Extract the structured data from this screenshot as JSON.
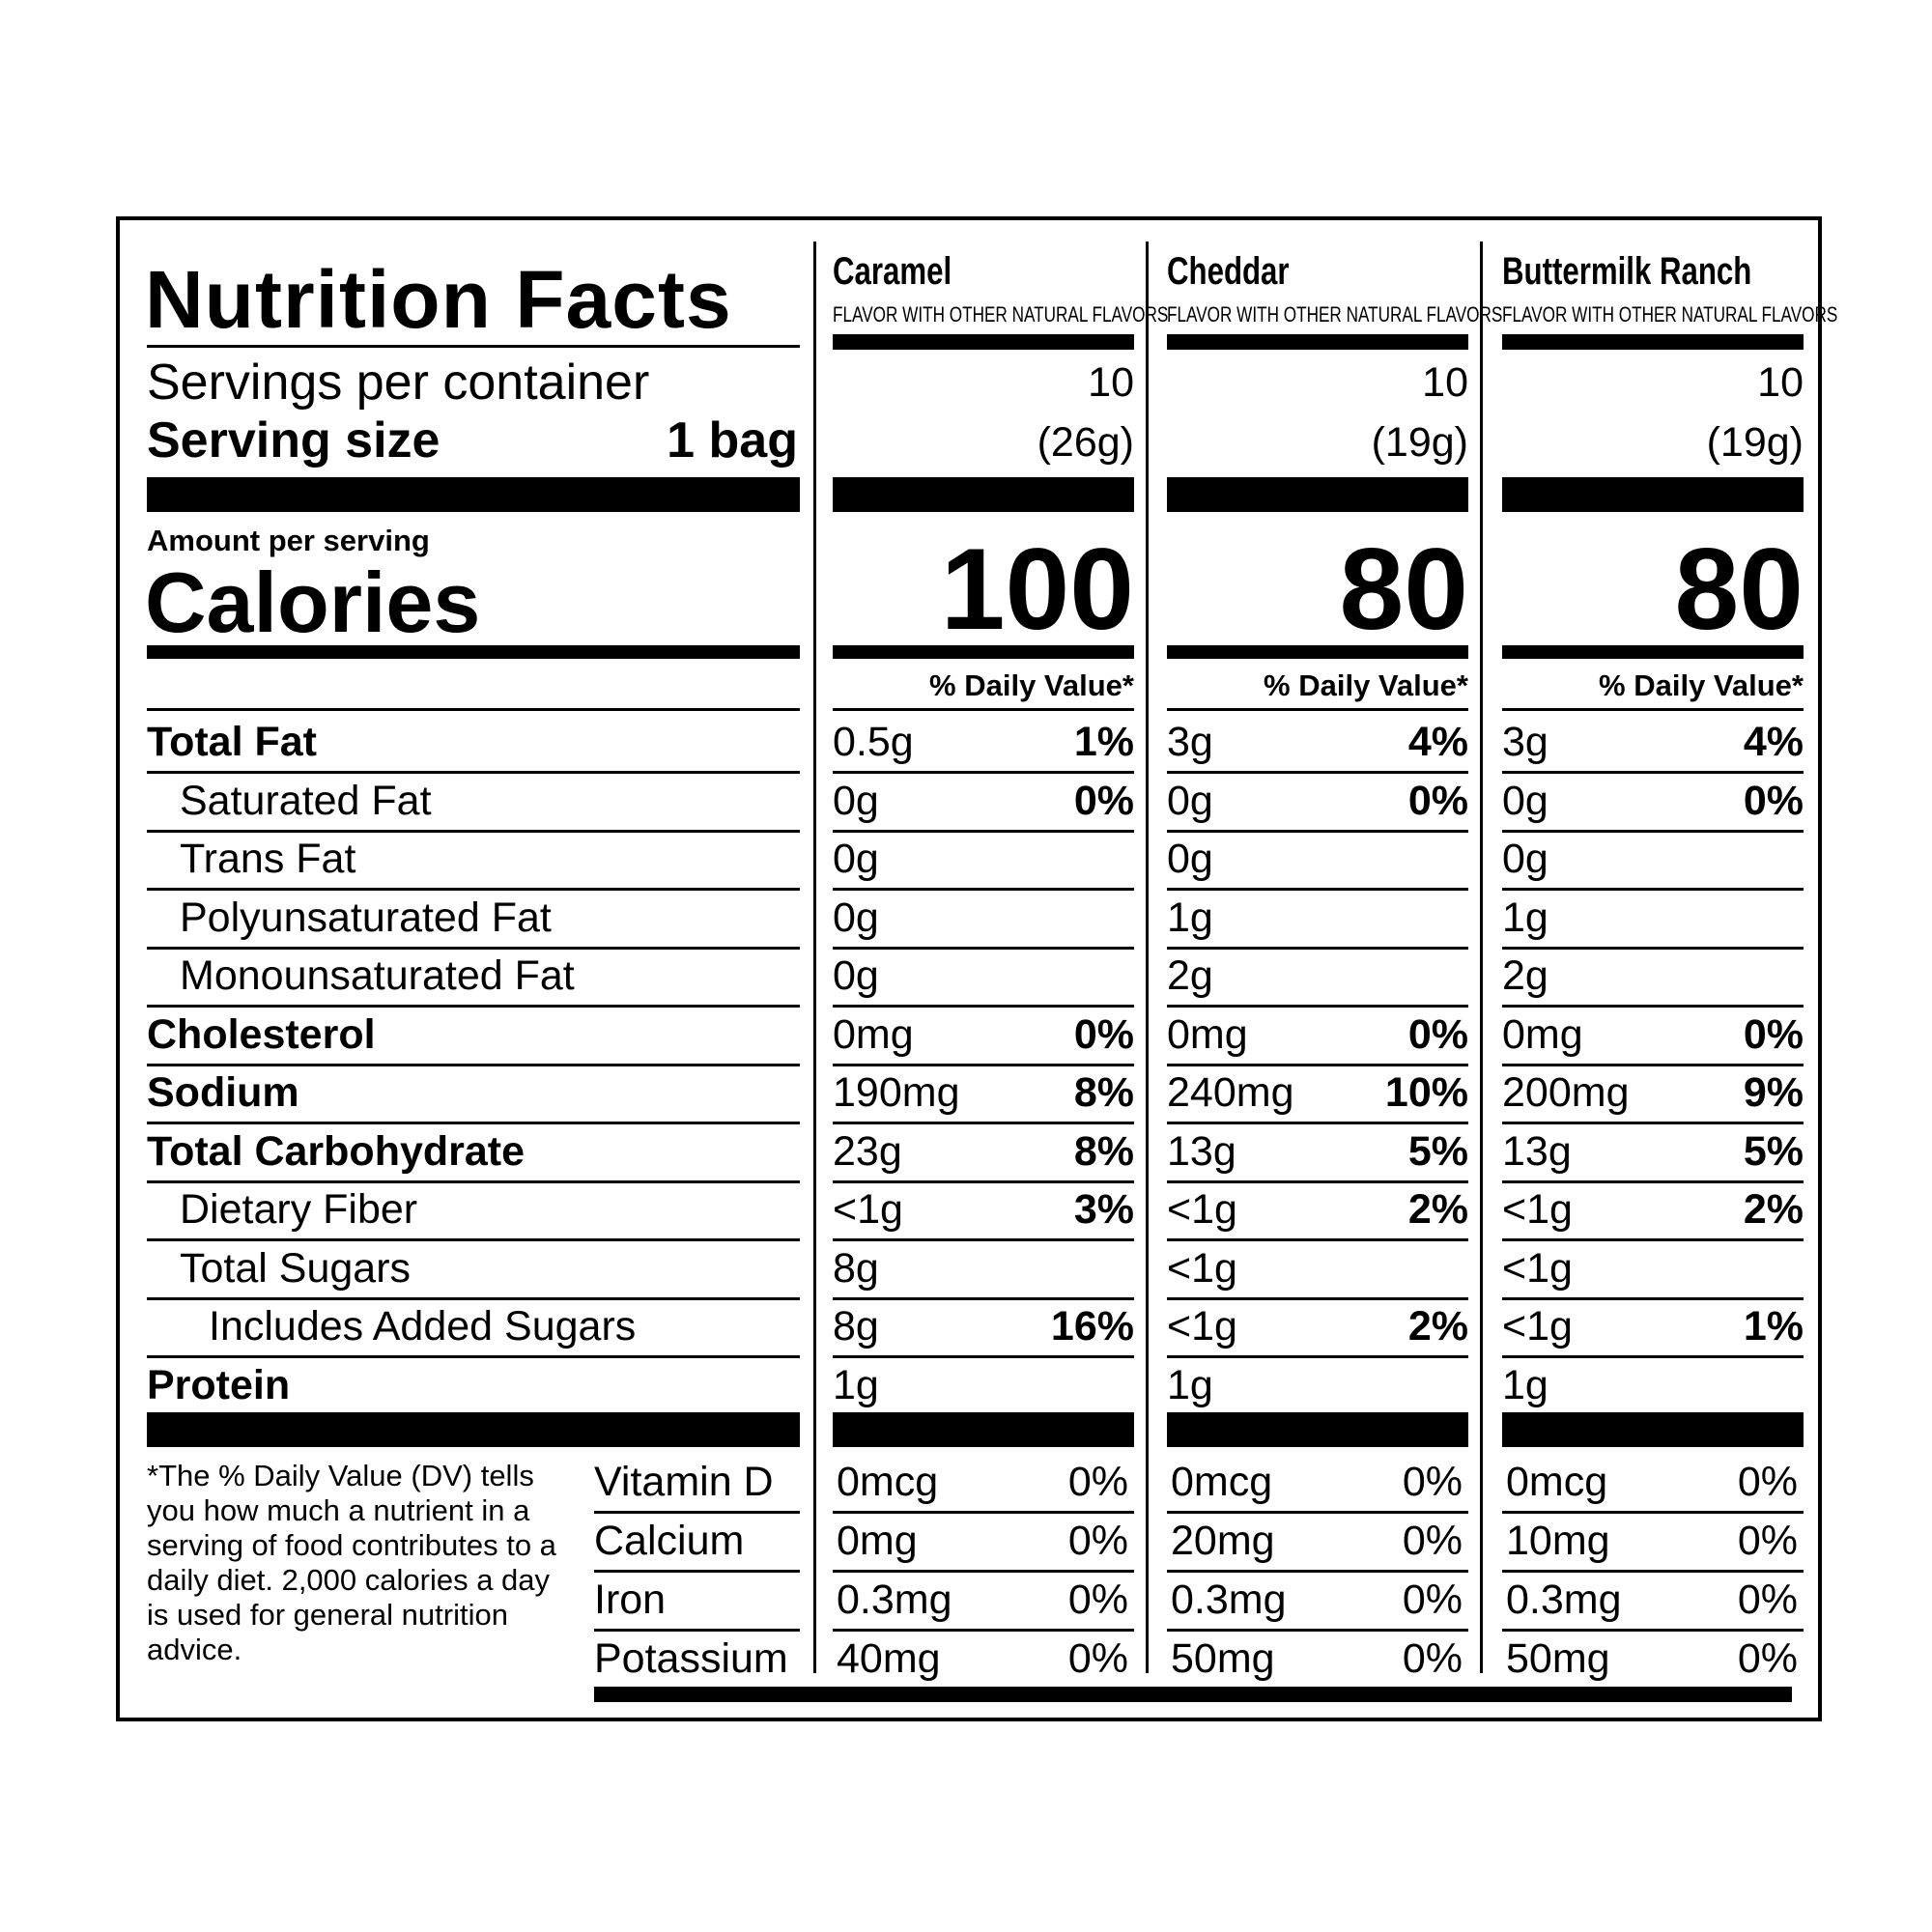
{
  "title": "Nutrition Facts",
  "servings_per_container_label": "Servings per container",
  "serving_size_label": "Serving size",
  "serving_size_value": "1 bag",
  "amount_per_serving": "Amount per serving",
  "calories_label": "Calories",
  "daily_value_header": "% Daily Value*",
  "nutrients": [
    {
      "label": "Total Fat",
      "style": "bold"
    },
    {
      "label": "Saturated Fat",
      "style": "ind1"
    },
    {
      "label": "Trans Fat",
      "style": "ind1"
    },
    {
      "label": "Polyunsaturated Fat",
      "style": "ind1"
    },
    {
      "label": "Monounsaturated Fat",
      "style": "ind1"
    },
    {
      "label": "Cholesterol",
      "style": "bold"
    },
    {
      "label": "Sodium",
      "style": "bold"
    },
    {
      "label": "Total Carbohydrate",
      "style": "bold"
    },
    {
      "label": "Dietary Fiber",
      "style": "ind1"
    },
    {
      "label": "Total Sugars",
      "style": "ind1"
    },
    {
      "label": "Includes Added Sugars",
      "style": "ind2"
    },
    {
      "label": "Protein",
      "style": "bold"
    }
  ],
  "vitamins": [
    "Vitamin D",
    "Calcium",
    "Iron",
    "Potassium"
  ],
  "footnote": "*The % Daily Value (DV) tells you how much a nutrient in a serving of food contributes to a daily diet. 2,000 calories a day is used for general nutrition advice.",
  "flavors": [
    {
      "name": "Caramel",
      "subtitle": "FLAVOR WITH OTHER NATURAL FLAVORS",
      "servings": "10",
      "serving_weight": "(26g)",
      "calories": "100",
      "rows": [
        {
          "amount": "0.5g",
          "dv": "1%"
        },
        {
          "amount": "0g",
          "dv": "0%"
        },
        {
          "amount": "0g",
          "dv": ""
        },
        {
          "amount": "0g",
          "dv": ""
        },
        {
          "amount": "0g",
          "dv": ""
        },
        {
          "amount": "0mg",
          "dv": "0%"
        },
        {
          "amount": "190mg",
          "dv": "8%"
        },
        {
          "amount": "23g",
          "dv": "8%"
        },
        {
          "amount": "<1g",
          "dv": "3%"
        },
        {
          "amount": "8g",
          "dv": ""
        },
        {
          "amount": "8g",
          "dv": "16%"
        },
        {
          "amount": "1g",
          "dv": ""
        }
      ],
      "vitamins": [
        {
          "amount": "0mcg",
          "dv": "0%"
        },
        {
          "amount": "0mg",
          "dv": "0%"
        },
        {
          "amount": "0.3mg",
          "dv": "0%"
        },
        {
          "amount": "40mg",
          "dv": "0%"
        }
      ]
    },
    {
      "name": "Cheddar",
      "subtitle": "FLAVOR WITH OTHER NATURAL FLAVORS",
      "servings": "10",
      "serving_weight": "(19g)",
      "calories": "80",
      "rows": [
        {
          "amount": "3g",
          "dv": "4%"
        },
        {
          "amount": "0g",
          "dv": "0%"
        },
        {
          "amount": "0g",
          "dv": ""
        },
        {
          "amount": "1g",
          "dv": ""
        },
        {
          "amount": "2g",
          "dv": ""
        },
        {
          "amount": "0mg",
          "dv": "0%"
        },
        {
          "amount": "240mg",
          "dv": "10%"
        },
        {
          "amount": "13g",
          "dv": "5%"
        },
        {
          "amount": "<1g",
          "dv": "2%"
        },
        {
          "amount": "<1g",
          "dv": ""
        },
        {
          "amount": "<1g",
          "dv": "2%"
        },
        {
          "amount": "1g",
          "dv": ""
        }
      ],
      "vitamins": [
        {
          "amount": "0mcg",
          "dv": "0%"
        },
        {
          "amount": "20mg",
          "dv": "0%"
        },
        {
          "amount": "0.3mg",
          "dv": "0%"
        },
        {
          "amount": "50mg",
          "dv": "0%"
        }
      ]
    },
    {
      "name": "Buttermilk Ranch",
      "subtitle": "FLAVOR WITH OTHER NATURAL FLAVORS",
      "servings": "10",
      "serving_weight": "(19g)",
      "calories": "80",
      "rows": [
        {
          "amount": "3g",
          "dv": "4%"
        },
        {
          "amount": "0g",
          "dv": "0%"
        },
        {
          "amount": "0g",
          "dv": ""
        },
        {
          "amount": "1g",
          "dv": ""
        },
        {
          "amount": "2g",
          "dv": ""
        },
        {
          "amount": "0mg",
          "dv": "0%"
        },
        {
          "amount": "200mg",
          "dv": "9%"
        },
        {
          "amount": "13g",
          "dv": "5%"
        },
        {
          "amount": "<1g",
          "dv": "2%"
        },
        {
          "amount": "<1g",
          "dv": ""
        },
        {
          "amount": "<1g",
          "dv": "1%"
        },
        {
          "amount": "1g",
          "dv": ""
        }
      ],
      "vitamins": [
        {
          "amount": "0mcg",
          "dv": "0%"
        },
        {
          "amount": "10mg",
          "dv": "0%"
        },
        {
          "amount": "0.3mg",
          "dv": "0%"
        },
        {
          "amount": "50mg",
          "dv": "0%"
        }
      ]
    }
  ]
}
